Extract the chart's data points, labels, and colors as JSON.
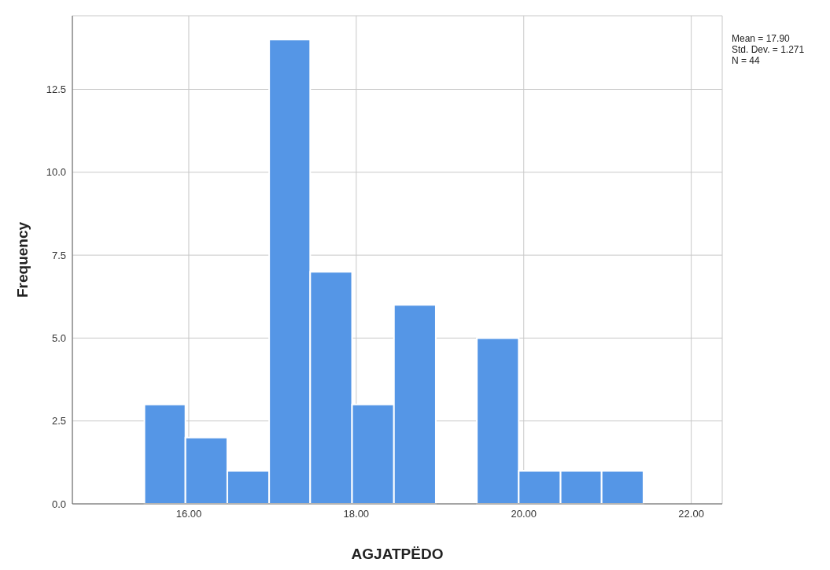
{
  "chart_data": {
    "type": "histogram",
    "xlabel": "AGJATPËDO",
    "ylabel": "Frequency",
    "bins": [
      15.47,
      15.96,
      16.46,
      16.96,
      17.45,
      17.95,
      18.45,
      18.95,
      19.44,
      19.94,
      20.44,
      20.93,
      21.43
    ],
    "values": [
      3,
      2,
      1,
      14,
      7,
      3,
      6,
      0,
      5,
      1,
      1,
      1
    ],
    "color": "#5596e6",
    "xlim": [
      14.61,
      22.37
    ],
    "xticks": [
      {
        "value": 16,
        "label": "16.00"
      },
      {
        "value": 18,
        "label": "18.00"
      },
      {
        "value": 20,
        "label": "20.00"
      },
      {
        "value": 22,
        "label": "22.00"
      }
    ],
    "ylim": [
      0,
      14.72
    ],
    "yticks": [
      {
        "value": 0,
        "label": "0.0"
      },
      {
        "value": 2.5,
        "label": "2.5"
      },
      {
        "value": 5,
        "label": "5.0"
      },
      {
        "value": 7.5,
        "label": "7.5"
      },
      {
        "value": 10,
        "label": "10.0"
      },
      {
        "value": 12.5,
        "label": "12.5"
      }
    ],
    "grid": true,
    "annotations": [
      "Mean = 17.90",
      "Std. Dev. = 1.271",
      "N = 44"
    ]
  }
}
